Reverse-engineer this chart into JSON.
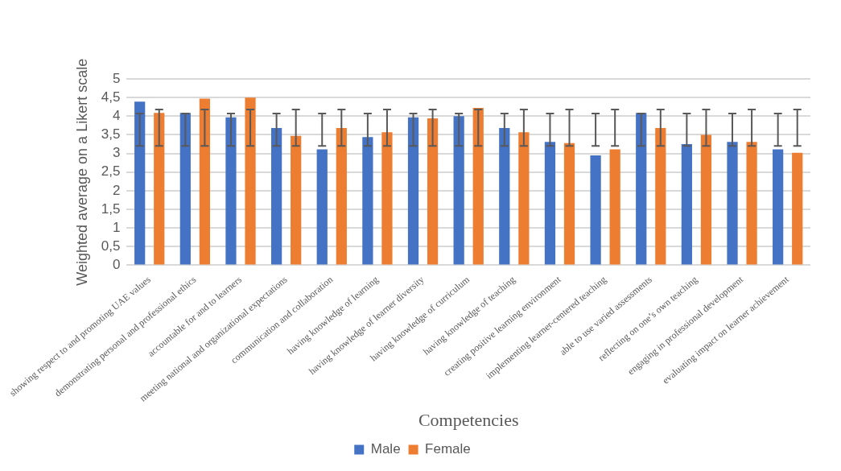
{
  "chart_data": {
    "type": "bar",
    "xlabel": "Competencies",
    "ylabel": "Weighted average on a Likert scale",
    "categories": [
      "showing respect to and promoting UAE values",
      "demonstrating personal and professional ethics",
      "accountable for and to learners",
      "meeting national and organizational expectations",
      "communication and collaboration",
      "having knowledge of learning",
      "having knowledge of learner diversity",
      "having knowledge of curriculum",
      "having knowledge of teaching",
      "creating positive learning environment",
      "implementing learner-centered teaching",
      "able to use varied assessments",
      "reflecting on one’s own teaching",
      "engaging in professional development",
      "evaluating impact on learner achievement"
    ],
    "series": [
      {
        "name": "Male",
        "color": "#4472c4",
        "values": [
          4.39,
          4.09,
          3.97,
          3.68,
          3.11,
          3.44,
          3.97,
          4.0,
          3.68,
          3.31,
          2.95,
          4.09,
          3.25,
          3.31,
          3.11
        ],
        "errors": [
          [
            3.2,
            4.07
          ],
          [
            3.2,
            4.07
          ],
          [
            3.2,
            4.07
          ],
          [
            3.2,
            4.07
          ],
          [
            3.2,
            4.07
          ],
          [
            3.2,
            4.07
          ],
          [
            3.2,
            4.07
          ],
          [
            3.2,
            4.07
          ],
          [
            3.2,
            4.07
          ],
          [
            3.2,
            4.07
          ],
          [
            3.2,
            4.07
          ],
          [
            3.2,
            4.07
          ],
          [
            3.2,
            4.07
          ],
          [
            3.2,
            4.07
          ],
          [
            3.2,
            4.07
          ]
        ]
      },
      {
        "name": "Female",
        "color": "#ed7d31",
        "values": [
          4.09,
          4.47,
          4.5,
          3.47,
          3.68,
          3.57,
          3.94,
          4.22,
          3.57,
          3.28,
          3.11,
          3.68,
          3.5,
          3.31,
          3.02
        ],
        "errors": [
          [
            3.2,
            4.18
          ],
          [
            3.2,
            4.18
          ],
          [
            3.2,
            4.18
          ],
          [
            3.2,
            4.18
          ],
          [
            3.2,
            4.18
          ],
          [
            3.2,
            4.18
          ],
          [
            3.2,
            4.18
          ],
          [
            3.2,
            4.18
          ],
          [
            3.2,
            4.18
          ],
          [
            3.2,
            4.18
          ],
          [
            3.2,
            4.18
          ],
          [
            3.2,
            4.18
          ],
          [
            3.2,
            4.18
          ],
          [
            3.2,
            4.18
          ],
          [
            3.2,
            4.18
          ]
        ]
      }
    ],
    "ylim": [
      0,
      5
    ],
    "yticks": [
      0,
      {
        "value": 0.5,
        "label": "0,5"
      },
      1,
      {
        "value": 1.5,
        "label": "1,5"
      },
      2,
      {
        "value": 2.5,
        "label": "2,5"
      },
      3,
      {
        "value": 3.5,
        "label": "3,5"
      },
      4,
      {
        "value": 4.5,
        "label": "4,5"
      },
      5
    ],
    "grid": "y",
    "legend": "bottom"
  }
}
